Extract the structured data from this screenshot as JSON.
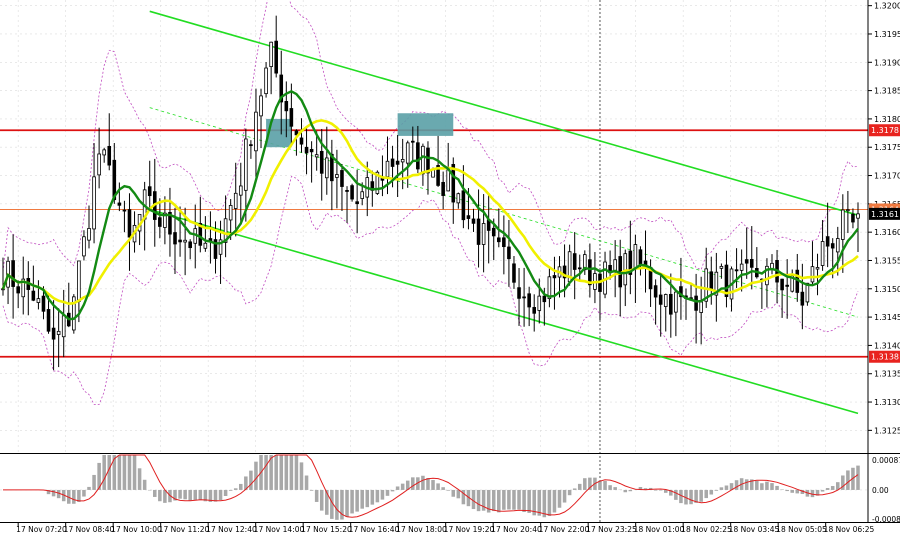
{
  "colors": {
    "background": "#ffffff",
    "grid": "#dcdcdc",
    "candle": "#000000",
    "channel": "#22dd22",
    "resistance_line": "#dd1111",
    "marker_box": "#5aa0a6",
    "ma_fast": "#138a13",
    "ma_slow": "#f0f000",
    "envelope": "#c04cc0",
    "macd_hist": "#a8a8a8",
    "macd_signal": "#e02020",
    "price_tag_bg": "#e8231e",
    "current_tag_bg": "#000000"
  },
  "chart_data": [
    {
      "type": "candlestick",
      "instrument_scale": "price",
      "ylim": [
        1.3121,
        1.3201
      ],
      "y_ticks": [
        "1.3200",
        "1.3195",
        "1.3190",
        "1.3185",
        "1.3180",
        "1.3175",
        "1.3170",
        "1.3165",
        "1.3160",
        "1.3155",
        "1.3150",
        "1.3145",
        "1.3140",
        "1.3135",
        "1.3130",
        "1.3125"
      ],
      "x_ticks": [
        "17 Nov 07:20",
        "17 Nov 08:40",
        "17 Nov 10:00",
        "17 Nov 11:20",
        "17 Nov 12:40",
        "17 Nov 14:00",
        "17 Nov 15:20",
        "17 Nov 16:40",
        "17 Nov 18:00",
        "17 Nov 19:20",
        "17 Nov 20:40",
        "17 Nov 22:00",
        "17 Nov 23:25",
        "18 Nov 01:00",
        "18 Nov 02:25",
        "18 Nov 03:45",
        "18 Nov 05:05",
        "18 Nov 06:25"
      ],
      "bar_count": 170,
      "price_path": [
        [
          0,
          1.3153
        ],
        [
          6,
          1.3149
        ],
        [
          10,
          1.314
        ],
        [
          13,
          1.3145
        ],
        [
          16,
          1.3158
        ],
        [
          19,
          1.3174
        ],
        [
          22,
          1.3168
        ],
        [
          25,
          1.3158
        ],
        [
          28,
          1.3165
        ],
        [
          31,
          1.3162
        ],
        [
          34,
          1.316
        ],
        [
          38,
          1.3158
        ],
        [
          41,
          1.3156
        ],
        [
          44,
          1.3162
        ],
        [
          47,
          1.317
        ],
        [
          50,
          1.3182
        ],
        [
          53,
          1.3191
        ],
        [
          56,
          1.3182
        ],
        [
          59,
          1.3176
        ],
        [
          63,
          1.3172
        ],
        [
          66,
          1.3168
        ],
        [
          70,
          1.3165
        ],
        [
          73,
          1.3168
        ],
        [
          76,
          1.3172
        ],
        [
          80,
          1.3174
        ],
        [
          84,
          1.3173
        ],
        [
          87,
          1.3169
        ],
        [
          90,
          1.3166
        ],
        [
          93,
          1.3161
        ],
        [
          96,
          1.3158
        ],
        [
          99,
          1.3155
        ],
        [
          103,
          1.315
        ],
        [
          106,
          1.3148
        ],
        [
          109,
          1.3152
        ],
        [
          113,
          1.3155
        ],
        [
          116,
          1.3153
        ],
        [
          120,
          1.3152
        ],
        [
          125,
          1.3155
        ],
        [
          130,
          1.3149
        ],
        [
          135,
          1.3147
        ],
        [
          140,
          1.3152
        ],
        [
          145,
          1.3151
        ],
        [
          150,
          1.3153
        ],
        [
          155,
          1.3151
        ],
        [
          158,
          1.3148
        ],
        [
          162,
          1.3157
        ],
        [
          166,
          1.3161
        ],
        [
          169,
          1.3161
        ]
      ],
      "horizontal_levels": [
        {
          "label": "1.3178",
          "value": 1.3178,
          "color": "#dd1111"
        },
        {
          "label": "1.3164",
          "value": 1.3164,
          "color": "#f07a40"
        },
        {
          "label": "1.3138",
          "value": 1.3138,
          "color": "#dd1111"
        }
      ],
      "current_price": "1.3161",
      "channel_lines": [
        {
          "from": [
            29,
            1.3199
          ],
          "to": [
            169,
            1.3163
          ]
        },
        {
          "from": [
            29,
            1.3164
          ],
          "to": [
            169,
            1.3128
          ]
        }
      ],
      "channel_midline": {
        "from": [
          29,
          1.3182
        ],
        "to": [
          169,
          1.3145
        ]
      },
      "marker_boxes": [
        {
          "x_from": 52,
          "x_to": 57,
          "y_from": 1.3175,
          "y_to": 1.318
        },
        {
          "x_from": 78,
          "x_to": 89,
          "y_from": 1.3177,
          "y_to": 1.3181
        }
      ],
      "vertical_marker_bar": 118
    },
    {
      "type": "histogram",
      "indicator": "oscillator",
      "ylim": [
        -0.0008,
        0.0009
      ],
      "y_ticks": [
        "0.00087",
        "0.00",
        "-0.00082"
      ]
    }
  ]
}
